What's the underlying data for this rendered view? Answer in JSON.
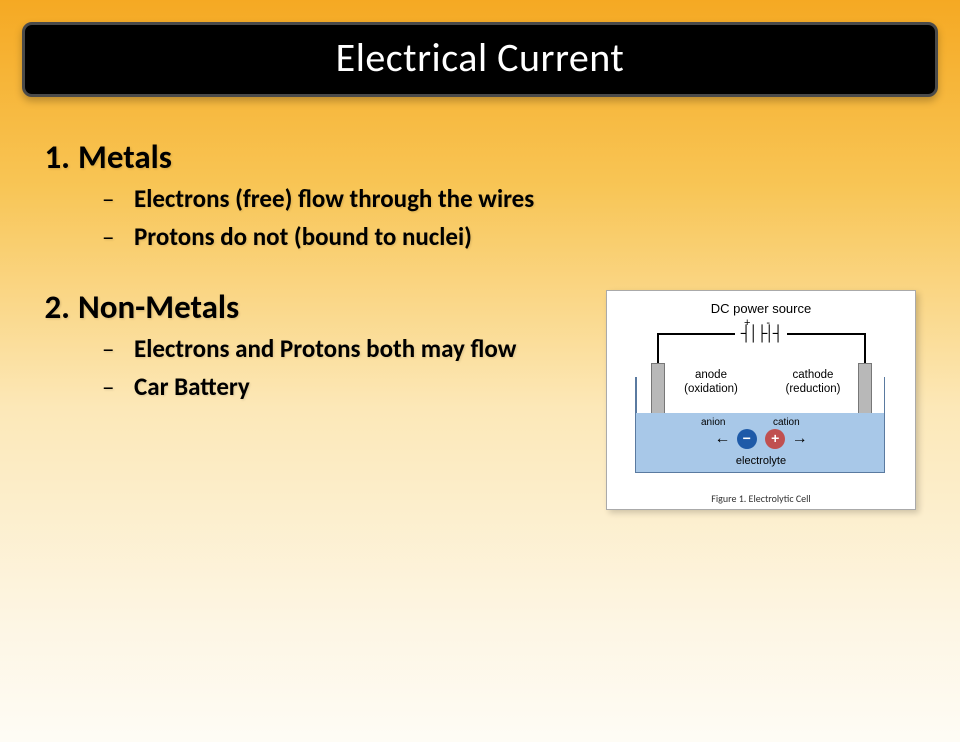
{
  "title": "Electrical Current",
  "list": [
    {
      "num": "1.",
      "heading": "Metals",
      "subs": [
        "Electrons (free) flow through the wires",
        "Protons do not (bound to nuclei)"
      ]
    },
    {
      "num": "2.",
      "heading": "Non-Metals",
      "subs": [
        "Electrons and Protons both may flow",
        "Car Battery"
      ]
    }
  ],
  "diagram": {
    "power_source": "DC power source",
    "plus": "+",
    "minus": "-",
    "battery_symbol": "┤│├│┤",
    "anode_label": "anode",
    "anode_sub": "(oxidation)",
    "cathode_label": "cathode",
    "cathode_sub": "(reduction)",
    "anion_label": "anion",
    "cation_label": "cation",
    "arrow_left": "←",
    "arrow_right": "→",
    "neg_sign": "−",
    "pos_sign": "+",
    "electrolyte": "electrolyte",
    "caption": "Figure 1.  Electrolytic Cell",
    "colors": {
      "tank_fill": "#a8c8e8",
      "tank_border": "#5a7aa0",
      "electrode_fill": "#b8b8b8",
      "neg_ion": "#1e5aa8",
      "pos_ion": "#c05050"
    }
  },
  "style": {
    "title_bg": "#000000",
    "title_color": "#ffffff",
    "title_fontsize": 40,
    "heading_fontsize": 33,
    "sub_fontsize": 25,
    "bg_gradient_top": "#f5a923",
    "bg_gradient_bottom": "#fefcf5"
  }
}
